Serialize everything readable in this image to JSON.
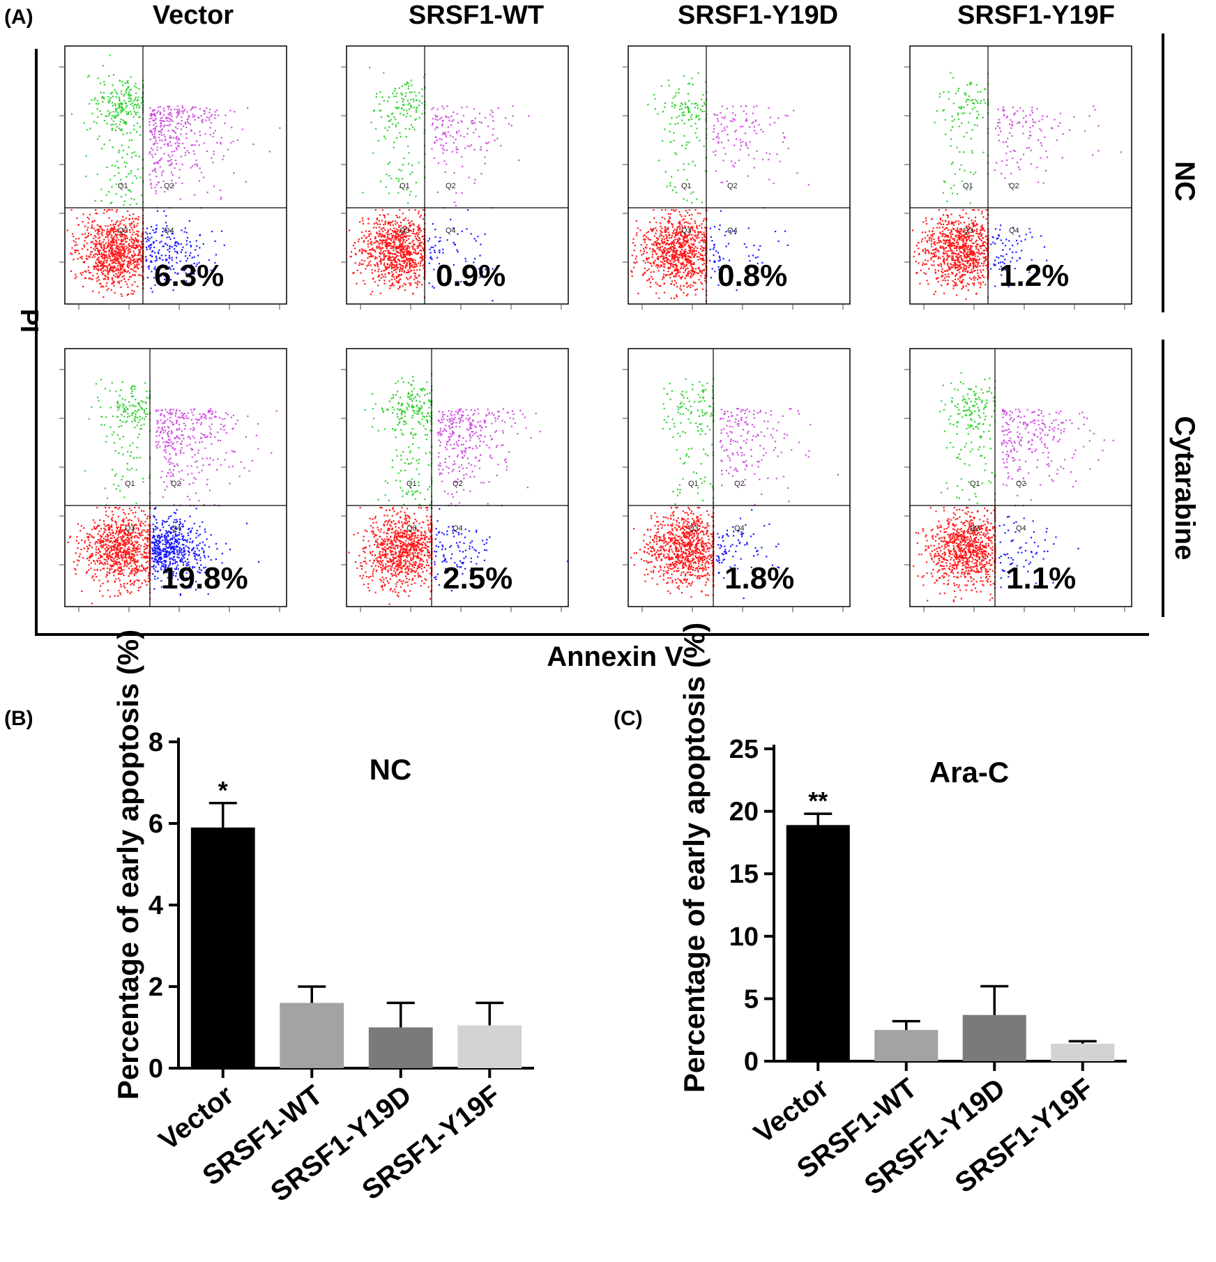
{
  "panel_a": {
    "label": "(A)",
    "columns": [
      "Vector",
      "SRSF1-WT",
      "SRSF1-Y19D",
      "SRSF1-Y19F"
    ],
    "rows": [
      "NC",
      "Cytarabine"
    ],
    "y_axis_label": "PI",
    "x_axis_label": "Annexin V",
    "quadrant_labels": [
      "Q1",
      "Q2",
      "Q3",
      "Q4"
    ],
    "plots": [
      [
        {
          "percent": "6.3%",
          "q4_density": 0.063,
          "q2_density": 0.3,
          "q1_density": 0.25
        },
        {
          "percent": "0.9%",
          "q4_density": 0.009,
          "q2_density": 0.12,
          "q1_density": 0.14
        },
        {
          "percent": "0.8%",
          "q4_density": 0.008,
          "q2_density": 0.1,
          "q1_density": 0.12
        },
        {
          "percent": "1.2%",
          "q4_density": 0.012,
          "q2_density": 0.1,
          "q1_density": 0.1
        }
      ],
      [
        {
          "percent": "19.8%",
          "q4_density": 0.198,
          "q2_density": 0.28,
          "q1_density": 0.15
        },
        {
          "percent": "2.5%",
          "q4_density": 0.025,
          "q2_density": 0.25,
          "q1_density": 0.22
        },
        {
          "percent": "1.8%",
          "q4_density": 0.018,
          "q2_density": 0.14,
          "q1_density": 0.12
        },
        {
          "percent": "1.1%",
          "q4_density": 0.011,
          "q2_density": 0.2,
          "q1_density": 0.15
        }
      ]
    ],
    "colors": {
      "q1": "#2dd12d",
      "q2": "#d050e0",
      "q3": "#ff1a1a",
      "q4": "#1a1aff"
    }
  },
  "chart_data": [
    {
      "type": "bar",
      "panel": "(B)",
      "title": "NC",
      "ylabel": "Percentage of early apoptosis (%)",
      "categories": [
        "Vector",
        "SRSF1-WT",
        "SRSF1-Y19D",
        "SRSF1-Y19F"
      ],
      "values": [
        5.9,
        1.6,
        1.0,
        1.05
      ],
      "errors": [
        0.6,
        0.4,
        0.6,
        0.55
      ],
      "significance": [
        "*",
        "",
        "",
        ""
      ],
      "ylim": [
        0,
        8
      ],
      "yticks": [
        0,
        2,
        4,
        6,
        8
      ],
      "colors": [
        "#000000",
        "#a3a3a3",
        "#7a7a7a",
        "#d3d3d3"
      ]
    },
    {
      "type": "bar",
      "panel": "(C)",
      "title": "Ara-C",
      "ylabel": "Percentage of early apoptosis (%)",
      "categories": [
        "Vector",
        "SRSF1-WT",
        "SRSF1-Y19D",
        "SRSF1-Y19F"
      ],
      "values": [
        18.9,
        2.5,
        3.7,
        1.4
      ],
      "errors": [
        0.9,
        0.7,
        2.3,
        0.2
      ],
      "significance": [
        "**",
        "",
        "",
        ""
      ],
      "ylim": [
        0,
        25
      ],
      "yticks": [
        0,
        5,
        10,
        15,
        20,
        25
      ],
      "colors": [
        "#000000",
        "#a3a3a3",
        "#7a7a7a",
        "#d3d3d3"
      ]
    }
  ]
}
